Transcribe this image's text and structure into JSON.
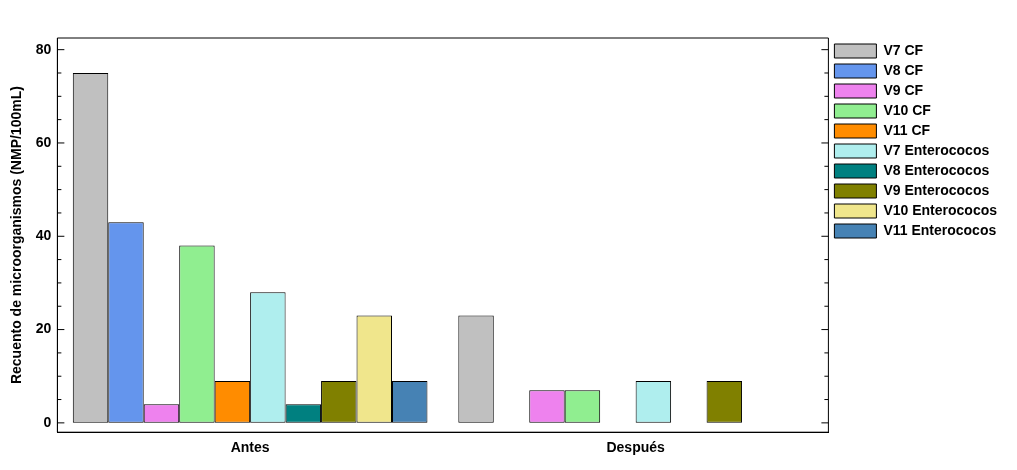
{
  "chart_data": {
    "type": "bar",
    "ylabel": "Recuento de microorganismos (NMP/100mL)",
    "categories": [
      "Antes",
      "Después"
    ],
    "series": [
      {
        "name": "V7 CF",
        "color": "#c0c0c0",
        "values": [
          75,
          23
        ]
      },
      {
        "name": "V8 CF",
        "color": "#6495ed",
        "values": [
          43,
          0
        ]
      },
      {
        "name": "V9 CF",
        "color": "#ee82ee",
        "values": [
          4,
          7
        ]
      },
      {
        "name": "V10 CF",
        "color": "#90ee90",
        "values": [
          38,
          7
        ]
      },
      {
        "name": "V11 CF",
        "color": "#ff8c00",
        "values": [
          9,
          0
        ]
      },
      {
        "name": "V7 Enterococos",
        "color": "#afeeee",
        "values": [
          28,
          9
        ]
      },
      {
        "name": "V8 Enterococos",
        "color": "#008080",
        "values": [
          4,
          0
        ]
      },
      {
        "name": "V9 Enterococos",
        "color": "#808000",
        "values": [
          9,
          9
        ]
      },
      {
        "name": "V10 Enterococos",
        "color": "#f0e68c",
        "values": [
          23,
          0
        ]
      },
      {
        "name": "V11 Enterococos",
        "color": "#4682b4",
        "values": [
          9,
          0
        ]
      }
    ],
    "ylim": [
      -2,
      82.5
    ],
    "yticks": [
      0,
      {
        "value": 5,
        "label": null
      },
      {
        "value": 10,
        "label": null
      },
      {
        "value": 15,
        "label": null
      },
      20,
      {
        "value": 25,
        "label": null
      },
      {
        "value": 30,
        "label": null
      },
      {
        "value": 35,
        "label": null
      },
      40,
      {
        "value": 45,
        "label": null
      },
      {
        "value": 50,
        "label": null
      },
      {
        "value": 55,
        "label": null
      },
      60,
      {
        "value": 65,
        "label": null
      },
      {
        "value": 70,
        "label": null
      },
      {
        "value": 75,
        "label": null
      },
      80
    ],
    "grid": false,
    "legend": "right"
  }
}
